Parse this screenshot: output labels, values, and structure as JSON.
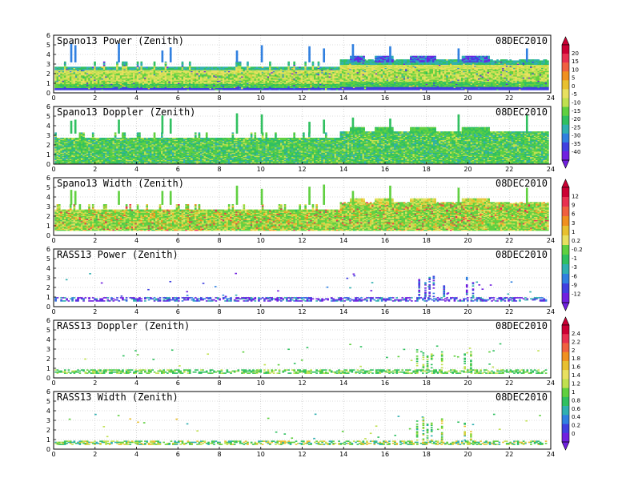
{
  "figure": {
    "date": "08DEC2010",
    "x_ticks": [
      "0",
      "2",
      "4",
      "6",
      "8",
      "10",
      "12",
      "14",
      "16",
      "18",
      "20",
      "22",
      "24"
    ],
    "y_ticks": [
      "0",
      "1",
      "2",
      "3",
      "4",
      "5",
      "6"
    ]
  },
  "colorbars": [
    {
      "id": "cb-power",
      "labels": [
        "20",
        "15",
        "10",
        "5",
        "0",
        "-5",
        "-10",
        "-15",
        "-20",
        "-25",
        "-30",
        "-35",
        "-40"
      ],
      "colors": [
        "#cc0033",
        "#e83050",
        "#f06040",
        "#f09020",
        "#e8c030",
        "#e8e060",
        "#c0e050",
        "#60d040",
        "#30c060",
        "#30b0b0",
        "#3080e0",
        "#4040e0",
        "#7020e0"
      ]
    },
    {
      "id": "cb-width",
      "labels": [
        "12",
        "9",
        "6",
        "3",
        "1",
        "0.2",
        "-0.2",
        "-1",
        "-3",
        "-6",
        "-9",
        "-12"
      ],
      "colors": [
        "#cc0033",
        "#e83050",
        "#f06040",
        "#f09020",
        "#e8c030",
        "#e8e060",
        "#60d040",
        "#30c060",
        "#30b0b0",
        "#3080e0",
        "#4040e0",
        "#7020e0"
      ]
    },
    {
      "id": "cb-doppler",
      "labels": [
        "2.4",
        "2.2",
        "2",
        "1.8",
        "1.6",
        "1.4",
        "1.2",
        "1",
        "0.8",
        "0.6",
        "0.4",
        "0.2",
        "0"
      ],
      "colors": [
        "#cc0033",
        "#e83050",
        "#f06040",
        "#f09020",
        "#e8c030",
        "#e8e060",
        "#c0e050",
        "#60d040",
        "#30c060",
        "#30b0b0",
        "#3080e0",
        "#4040e0",
        "#7020e0"
      ]
    }
  ],
  "chart_data": [
    {
      "type": "heatmap",
      "title": "Spano13 Power (Zenith)",
      "date": "08DEC2010",
      "xlim": [
        0,
        24
      ],
      "ylim": [
        0,
        6
      ],
      "colorbar": "cb-power",
      "dense_band": {
        "from": 0.3,
        "to": 3.2
      },
      "spikes_to": [
        4.8,
        4.8,
        5.2,
        5.2,
        5.0,
        4.6
      ],
      "spike_hours": [
        0.8,
        1.0,
        3.1,
        5.2,
        5.6,
        8.8,
        10.0,
        12.3,
        13.0,
        14.4,
        16.2,
        19.5,
        22.8
      ],
      "plateaus": [
        {
          "x": [
            14.3,
            15.0
          ],
          "y": 3.8
        },
        {
          "x": [
            15.5,
            16.4
          ],
          "y": 3.8
        },
        {
          "x": [
            17.2,
            18.4
          ],
          "y": 3.8
        },
        {
          "x": [
            19.7,
            21.0
          ],
          "y": 3.8
        }
      ],
      "palette": [
        "#7020e0",
        "#4040e0",
        "#3080e0",
        "#30b0b0",
        "#30c060",
        "#60d040",
        "#c0e050",
        "#e8e060",
        "#e8c030"
      ],
      "character": "power"
    },
    {
      "type": "heatmap",
      "title": "Spano13 Doppler (Zenith)",
      "date": "08DEC2010",
      "xlim": [
        0,
        24
      ],
      "ylim": [
        0,
        6
      ],
      "colorbar": "cb-doppler",
      "dense_band": {
        "from": 0.0,
        "to": 3.2
      },
      "spike_hours": [
        0.8,
        1.0,
        3.1,
        5.2,
        5.6,
        8.8,
        10.0,
        12.3,
        13.0,
        14.4,
        16.2,
        19.5,
        22.8
      ],
      "plateaus": [
        {
          "x": [
            14.3,
            15.0
          ],
          "y": 3.8
        },
        {
          "x": [
            15.5,
            16.4
          ],
          "y": 3.8
        },
        {
          "x": [
            17.2,
            18.4
          ],
          "y": 3.8
        },
        {
          "x": [
            19.7,
            21.0
          ],
          "y": 3.8
        }
      ],
      "palette": [
        "#30c060",
        "#30c060",
        "#60d040",
        "#60d040",
        "#30b0b0",
        "#c0e050"
      ],
      "character": "doppler"
    },
    {
      "type": "heatmap",
      "title": "Spano13 Width (Zenith)",
      "date": "08DEC2010",
      "xlim": [
        0,
        24
      ],
      "ylim": [
        0,
        6
      ],
      "colorbar": "cb-width",
      "dense_band": {
        "from": 0.5,
        "to": 3.2
      },
      "spike_hours": [
        0.8,
        1.0,
        3.1,
        5.2,
        5.6,
        8.8,
        10.0,
        12.3,
        13.0,
        14.4,
        16.2,
        19.5,
        22.8
      ],
      "plateaus": [
        {
          "x": [
            14.3,
            15.0
          ],
          "y": 3.8
        },
        {
          "x": [
            15.5,
            16.4
          ],
          "y": 3.8
        },
        {
          "x": [
            17.2,
            18.4
          ],
          "y": 3.8
        },
        {
          "x": [
            19.7,
            21.0
          ],
          "y": 3.8
        }
      ],
      "palette": [
        "#60d040",
        "#c0e050",
        "#e8e060",
        "#e8c030",
        "#f09020",
        "#e83050",
        "#30c060"
      ],
      "character": "width"
    },
    {
      "type": "heatmap",
      "title": "RASS13 Power (Zenith)",
      "date": "08DEC2010",
      "xlim": [
        0,
        24
      ],
      "ylim": [
        0,
        6
      ],
      "colorbar": "cb-width",
      "dense_band": {
        "from": 0.55,
        "to": 0.95
      },
      "spike_hours": [
        17.6,
        17.9,
        18.1,
        18.3,
        18.8,
        19.9,
        20.2
      ],
      "palette": [
        "#7020e0",
        "#7020e0",
        "#4040e0",
        "#3080e0",
        "#30b0b0"
      ],
      "character": "rass"
    },
    {
      "type": "heatmap",
      "title": "RASS13 Doppler (Zenith)",
      "date": "08DEC2010",
      "xlim": [
        0,
        24
      ],
      "ylim": [
        0,
        6
      ],
      "colorbar": "cb-doppler",
      "dense_band": {
        "from": 0.45,
        "to": 0.85
      },
      "spike_hours": [
        17.5,
        17.8,
        18.0,
        18.2,
        18.7,
        19.8,
        20.1
      ],
      "palette": [
        "#60d040",
        "#30c060",
        "#c0e050",
        "#30c060"
      ],
      "character": "rass"
    },
    {
      "type": "heatmap",
      "title": "RASS13 Width (Zenith)",
      "date": "08DEC2010",
      "xlim": [
        0,
        24
      ],
      "ylim": [
        0,
        6
      ],
      "colorbar": "cb-doppler",
      "dense_band": {
        "from": 0.45,
        "to": 0.85
      },
      "spike_hours": [
        17.5,
        17.8,
        18.0,
        18.2,
        18.7,
        19.8,
        20.1
      ],
      "palette": [
        "#60d040",
        "#30c060",
        "#c0e050",
        "#30b0b0",
        "#e8c030"
      ],
      "character": "rass"
    }
  ]
}
